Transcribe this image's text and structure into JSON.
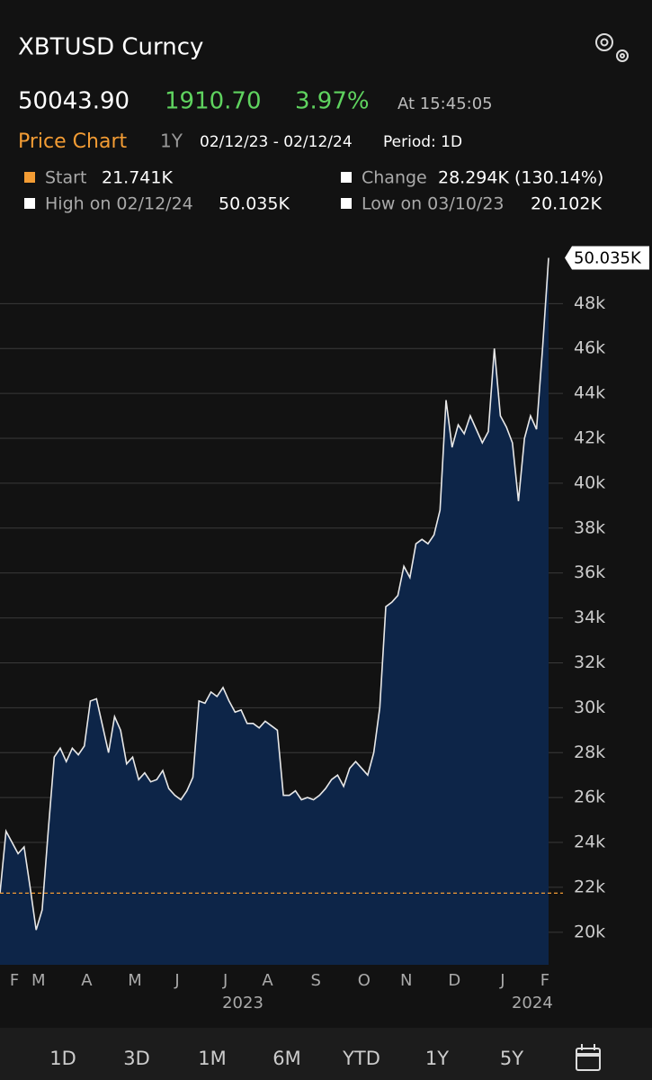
{
  "header": {
    "title": "XBTUSD Curncy",
    "last_price": "50043.90",
    "change": "1910.70",
    "change_pct": "3.97%",
    "time": "At 15:45:05"
  },
  "chart_header": {
    "title": "Price Chart",
    "range": "1Y",
    "dates": "02/12/23 - 02/12/24",
    "period": "Period: 1D"
  },
  "stats": [
    {
      "label": "Start",
      "value": "21.741K"
    },
    {
      "label": "Change",
      "value": "28.294K (130.14%)"
    },
    {
      "label": "High on 02/12/24",
      "value": "50.035K"
    },
    {
      "label": "Low on 03/10/23",
      "value": "20.102K"
    }
  ],
  "chart_data": {
    "type": "area",
    "color": "#e8e8e8",
    "fill": "#0d2548",
    "categories": [
      "F",
      null,
      null,
      null,
      "M",
      null,
      null,
      null,
      null,
      null,
      null,
      null,
      "A",
      null,
      null,
      null,
      null,
      null,
      null,
      null,
      "M",
      null,
      null,
      null,
      null,
      null,
      null,
      "J",
      null,
      null,
      null,
      null,
      null,
      null,
      null,
      "J",
      null,
      null,
      null,
      null,
      null,
      null,
      "A",
      null,
      null,
      null,
      null,
      null,
      null,
      null,
      "S",
      null,
      null,
      null,
      null,
      null,
      null,
      null,
      "O",
      null,
      null,
      null,
      null,
      null,
      null,
      "N",
      null,
      null,
      null,
      null,
      null,
      null,
      null,
      "D",
      null,
      null,
      null,
      null,
      null,
      null,
      null,
      "J",
      null,
      null,
      null,
      null,
      null,
      null,
      "F",
      null,
      null,
      null
    ],
    "values": [
      21741,
      24500,
      24000,
      23500,
      23800,
      22000,
      20102,
      21000,
      24500,
      27800,
      28200,
      27600,
      28200,
      27900,
      28300,
      30300,
      30400,
      29200,
      28000,
      29600,
      29000,
      27500,
      27800,
      26800,
      27100,
      26700,
      26800,
      27200,
      26400,
      26100,
      25900,
      26300,
      26900,
      30300,
      30200,
      30700,
      30500,
      30900,
      30300,
      29800,
      29900,
      29300,
      29300,
      29100,
      29400,
      29200,
      29000,
      26100,
      26100,
      26300,
      25900,
      26000,
      25900,
      26100,
      26400,
      26800,
      27000,
      26500,
      27300,
      27600,
      27300,
      27000,
      28000,
      30000,
      34500,
      34700,
      35000,
      36300,
      35800,
      37300,
      37500,
      37300,
      37700,
      38800,
      43700,
      41600,
      42600,
      42200,
      43000,
      42400,
      41800,
      42300,
      46000,
      43000,
      42500,
      41800,
      39200,
      42000,
      43000,
      42400,
      46000,
      50035
    ],
    "value_labels": [
      null,
      null,
      null,
      null,
      null,
      null,
      null,
      null,
      null,
      null,
      null,
      null,
      null,
      null,
      null,
      null,
      null,
      null,
      null,
      null,
      null,
      null,
      null,
      null,
      null,
      null,
      null,
      null,
      null,
      null,
      null,
      null,
      null,
      null,
      null,
      null,
      null,
      null,
      null,
      null,
      null,
      null,
      null,
      null,
      null,
      null,
      null,
      null,
      null,
      null,
      null,
      null,
      null,
      null,
      null,
      null,
      null,
      null,
      null,
      null,
      null,
      null,
      null,
      null,
      null,
      null,
      null,
      null,
      null,
      null,
      null,
      null,
      null,
      null,
      null,
      null,
      null,
      null,
      null,
      null,
      null,
      null,
      null,
      null,
      null,
      null,
      null,
      null,
      null,
      null,
      null,
      "50.035K"
    ],
    "x_group_labels": [
      "2023",
      "2024"
    ],
    "reference_line": 21741,
    "reference_color": "#f39c34",
    "ylim": [
      18550,
      51500
    ],
    "yticks": [
      {
        "value": 20000,
        "label": "20k"
      },
      {
        "value": 22000,
        "label": "22k"
      },
      {
        "value": 24000,
        "label": "24k"
      },
      {
        "value": 26000,
        "label": "26k"
      },
      {
        "value": 28000,
        "label": "28k"
      },
      {
        "value": 30000,
        "label": "30k"
      },
      {
        "value": 32000,
        "label": "32k"
      },
      {
        "value": 34000,
        "label": "34k"
      },
      {
        "value": 36000,
        "label": "36k"
      },
      {
        "value": 38000,
        "label": "38k"
      },
      {
        "value": 40000,
        "label": "40k"
      },
      {
        "value": 42000,
        "label": "42k"
      },
      {
        "value": 44000,
        "label": "44k"
      },
      {
        "value": 46000,
        "label": "46k"
      },
      {
        "value": 48000,
        "label": "48k"
      }
    ],
    "grid": true
  },
  "timeframes": [
    "1D",
    "3D",
    "1M",
    "6M",
    "YTD",
    "1Y",
    "5Y"
  ]
}
